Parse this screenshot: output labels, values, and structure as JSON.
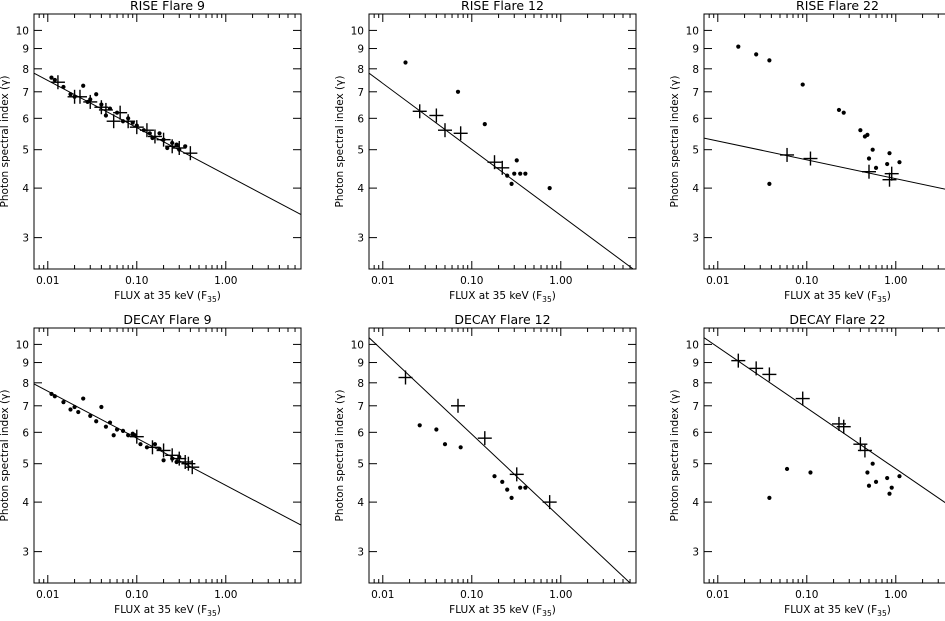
{
  "chart_data": [
    {
      "type": "scatter",
      "title": "RISE Flare 9",
      "xlabel_main": "FLUX at 35 keV (F",
      "xlabel_sub": "35",
      "xlabel_end": ")",
      "ylabel": "Photon spectral index (γ)",
      "xscale": "log",
      "yscale": "log",
      "xlim": [
        0.007,
        7
      ],
      "ylim": [
        2.5,
        11
      ],
      "x_ticks": [
        0.01,
        0.1,
        1.0
      ],
      "x_tick_labels": [
        "0.01",
        "0.10",
        "1.00"
      ],
      "y_ticks": [
        3,
        4,
        5,
        6,
        7,
        8,
        9,
        10
      ],
      "y_tick_labels": [
        "3",
        "4",
        "5",
        "6",
        "7",
        "8",
        "9",
        "10"
      ],
      "fit_line": {
        "x": [
          0.007,
          7
        ],
        "y": [
          7.8,
          3.43
        ]
      },
      "series": [
        {
          "marker": "cross",
          "x": [
            0.013,
            0.02,
            0.023,
            0.03,
            0.04,
            0.045,
            0.055,
            0.065,
            0.08,
            0.1,
            0.13,
            0.16,
            0.2,
            0.25,
            0.3,
            0.4
          ],
          "y": [
            7.4,
            6.8,
            6.8,
            6.6,
            6.4,
            6.3,
            5.9,
            6.2,
            5.9,
            5.7,
            5.6,
            5.4,
            5.3,
            5.1,
            5.05,
            4.9
          ]
        },
        {
          "marker": "dot",
          "x": [
            0.011,
            0.012,
            0.015,
            0.018,
            0.02,
            0.025,
            0.028,
            0.03,
            0.035,
            0.04,
            0.045,
            0.05,
            0.06,
            0.07,
            0.08,
            0.09,
            0.1,
            0.12,
            0.14,
            0.15,
            0.18,
            0.2,
            0.22,
            0.25,
            0.28,
            0.3,
            0.35
          ],
          "y": [
            7.6,
            7.5,
            7.2,
            6.9,
            6.8,
            7.25,
            6.6,
            6.7,
            6.9,
            6.5,
            6.1,
            6.35,
            6.2,
            5.9,
            6.0,
            5.85,
            5.75,
            5.6,
            5.5,
            5.35,
            5.5,
            5.3,
            5.05,
            5.2,
            5.15,
            5.0,
            5.1
          ]
        }
      ]
    },
    {
      "type": "scatter",
      "title": "RISE Flare 12",
      "xlabel_main": "FLUX at 35 keV (F",
      "xlabel_sub": "35",
      "xlabel_end": ")",
      "ylabel": "Photon spectral index (γ)",
      "xscale": "log",
      "yscale": "log",
      "xlim": [
        0.007,
        7
      ],
      "ylim": [
        2.5,
        11
      ],
      "x_ticks": [
        0.01,
        0.1,
        1.0
      ],
      "x_tick_labels": [
        "0.01",
        "0.10",
        "1.00"
      ],
      "y_ticks": [
        3,
        4,
        5,
        6,
        7,
        8,
        9,
        10
      ],
      "y_tick_labels": [
        "3",
        "4",
        "5",
        "6",
        "7",
        "8",
        "9",
        "10"
      ],
      "fit_line": {
        "x": [
          0.007,
          6.5
        ],
        "y": [
          7.8,
          2.5
        ]
      },
      "series": [
        {
          "marker": "cross",
          "x": [
            0.026,
            0.04,
            0.05,
            0.075,
            0.18,
            0.22
          ],
          "y": [
            6.25,
            6.1,
            5.6,
            5.5,
            4.65,
            4.5
          ]
        },
        {
          "marker": "dot",
          "x": [
            0.018,
            0.07,
            0.14,
            0.25,
            0.28,
            0.3,
            0.32,
            0.35,
            0.4,
            0.75
          ],
          "y": [
            8.3,
            7.0,
            5.8,
            4.3,
            4.1,
            4.35,
            4.7,
            4.35,
            4.35,
            4.0
          ]
        }
      ]
    },
    {
      "type": "scatter",
      "title": "RISE Flare 22",
      "xlabel_main": "FLUX at 35 keV (F",
      "xlabel_sub": "35",
      "xlabel_end": ")",
      "ylabel": "Photon spectral index (γ)",
      "xscale": "log",
      "yscale": "log",
      "xlim": [
        0.007,
        7
      ],
      "ylim": [
        2.5,
        11
      ],
      "x_ticks": [
        0.01,
        0.1,
        1.0
      ],
      "x_tick_labels": [
        "0.01",
        "0.10",
        "1.00"
      ],
      "y_ticks": [
        3,
        4,
        5,
        6,
        7,
        8,
        9,
        10
      ],
      "y_tick_labels": [
        "3",
        "4",
        "5",
        "6",
        "7",
        "8",
        "9",
        "10"
      ],
      "fit_line": {
        "x": [
          0.007,
          7
        ],
        "y": [
          5.35,
          3.85
        ]
      },
      "series": [
        {
          "marker": "cross",
          "x": [
            0.06,
            0.11,
            0.5,
            0.85,
            0.9
          ],
          "y": [
            4.85,
            4.75,
            4.4,
            4.2,
            4.35
          ]
        },
        {
          "marker": "dot",
          "x": [
            0.017,
            0.027,
            0.038,
            0.038,
            0.09,
            0.23,
            0.26,
            0.4,
            0.45,
            0.48,
            0.5,
            0.55,
            0.6,
            0.8,
            0.85,
            1.1
          ],
          "y": [
            9.1,
            8.7,
            8.4,
            4.1,
            7.3,
            6.3,
            6.2,
            5.6,
            5.4,
            5.45,
            4.75,
            5.0,
            4.5,
            4.6,
            4.9,
            4.65
          ]
        }
      ]
    },
    {
      "type": "scatter",
      "title": "DECAY Flare 9",
      "xlabel_main": "FLUX at 35 keV (F",
      "xlabel_sub": "35",
      "xlabel_end": ")",
      "ylabel": "Photon spectral index (γ)",
      "xscale": "log",
      "yscale": "log",
      "xlim": [
        0.007,
        7
      ],
      "ylim": [
        2.5,
        11
      ],
      "x_ticks": [
        0.01,
        0.1,
        1.0
      ],
      "x_tick_labels": [
        "0.01",
        "0.10",
        "1.00"
      ],
      "y_ticks": [
        3,
        4,
        5,
        6,
        7,
        8,
        9,
        10
      ],
      "y_tick_labels": [
        "3",
        "4",
        "5",
        "6",
        "7",
        "8",
        "9",
        "10"
      ],
      "fit_line": {
        "x": [
          0.007,
          7
        ],
        "y": [
          7.95,
          3.5
        ]
      },
      "series": [
        {
          "marker": "cross",
          "x": [
            0.1,
            0.15,
            0.2,
            0.25,
            0.3,
            0.35,
            0.38,
            0.42
          ],
          "y": [
            5.85,
            5.5,
            5.4,
            5.25,
            5.15,
            5.05,
            5.0,
            4.9
          ]
        },
        {
          "marker": "dot",
          "x": [
            0.011,
            0.012,
            0.015,
            0.018,
            0.02,
            0.022,
            0.025,
            0.03,
            0.035,
            0.04,
            0.045,
            0.05,
            0.055,
            0.06,
            0.07,
            0.08,
            0.09,
            0.095,
            0.11,
            0.13,
            0.16,
            0.18,
            0.2,
            0.25,
            0.28,
            0.3
          ],
          "y": [
            7.5,
            7.4,
            7.15,
            6.85,
            6.95,
            6.75,
            7.3,
            6.6,
            6.4,
            6.95,
            6.2,
            6.35,
            5.9,
            6.1,
            6.05,
            5.9,
            5.95,
            5.9,
            5.6,
            5.5,
            5.6,
            5.45,
            5.1,
            5.15,
            5.05,
            5.2
          ]
        }
      ]
    },
    {
      "type": "scatter",
      "title": "DECAY Flare 12",
      "xlabel_main": "FLUX at 35 keV (F",
      "xlabel_sub": "35",
      "xlabel_end": ")",
      "ylabel": "Photon spectral index (γ)",
      "xscale": "log",
      "yscale": "log",
      "xlim": [
        0.007,
        7
      ],
      "ylim": [
        2.5,
        11
      ],
      "x_ticks": [
        0.01,
        0.1,
        1.0
      ],
      "x_tick_labels": [
        "0.01",
        "0.10",
        "1.00"
      ],
      "y_ticks": [
        3,
        4,
        5,
        6,
        7,
        8,
        9,
        10
      ],
      "y_tick_labels": [
        "3",
        "4",
        "5",
        "6",
        "7",
        "8",
        "9",
        "10"
      ],
      "fit_line": {
        "x": [
          0.007,
          6
        ],
        "y": [
          10.4,
          2.5
        ]
      },
      "series": [
        {
          "marker": "cross",
          "x": [
            0.018,
            0.07,
            0.14,
            0.32,
            0.75
          ],
          "y": [
            8.25,
            7.0,
            5.8,
            4.7,
            4.0
          ]
        },
        {
          "marker": "dot",
          "x": [
            0.026,
            0.04,
            0.05,
            0.075,
            0.18,
            0.22,
            0.25,
            0.28,
            0.35,
            0.4
          ],
          "y": [
            6.25,
            6.1,
            5.6,
            5.5,
            4.65,
            4.5,
            4.3,
            4.1,
            4.35,
            4.35
          ]
        }
      ]
    },
    {
      "type": "scatter",
      "title": "DECAY Flare 22",
      "xlabel_main": "FLUX at 35 keV (F",
      "xlabel_sub": "35",
      "xlabel_end": ")",
      "ylabel": "Photon spectral index (γ)",
      "xscale": "log",
      "yscale": "log",
      "xlim": [
        0.007,
        7
      ],
      "ylim": [
        2.5,
        11
      ],
      "x_ticks": [
        0.01,
        0.1,
        1.0
      ],
      "x_tick_labels": [
        "0.01",
        "0.10",
        "1.00"
      ],
      "y_ticks": [
        3,
        4,
        5,
        6,
        7,
        8,
        9,
        10
      ],
      "y_tick_labels": [
        "3",
        "4",
        "5",
        "6",
        "7",
        "8",
        "9",
        "10"
      ],
      "fit_line": {
        "x": [
          0.007,
          7
        ],
        "y": [
          10.4,
          3.6
        ]
      },
      "series": [
        {
          "marker": "cross",
          "x": [
            0.017,
            0.027,
            0.038,
            0.09,
            0.23,
            0.26,
            0.4,
            0.45
          ],
          "y": [
            9.1,
            8.7,
            8.4,
            7.3,
            6.3,
            6.2,
            5.6,
            5.4
          ]
        },
        {
          "marker": "dot",
          "x": [
            0.038,
            0.06,
            0.11,
            0.48,
            0.5,
            0.55,
            0.6,
            0.8,
            0.85,
            0.9,
            1.1
          ],
          "y": [
            4.1,
            4.85,
            4.75,
            4.75,
            4.4,
            5.0,
            4.5,
            4.6,
            4.2,
            4.35,
            4.65
          ]
        }
      ]
    }
  ]
}
